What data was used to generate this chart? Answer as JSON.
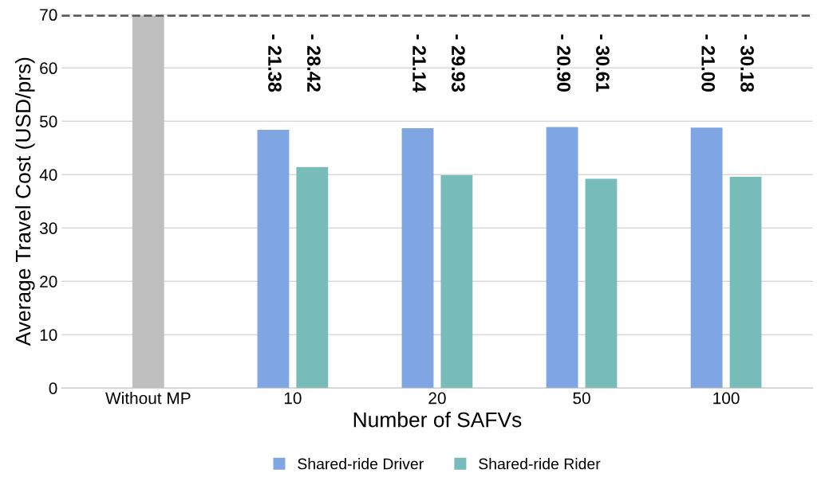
{
  "chart_data": {
    "type": "bar",
    "xlabel": "Number of SAFVs",
    "ylabel": "Average Travel Cost (USD/prs)",
    "categories": [
      "Without MP",
      "10",
      "20",
      "50",
      "100"
    ],
    "series": [
      {
        "color": "#bfbfbf",
        "values": [
          69.8,
          null,
          null,
          null,
          null
        ]
      },
      {
        "name": "Shared-ride Driver",
        "color": "#7fa6e3",
        "values": [
          null,
          48.4,
          48.7,
          48.9,
          48.8
        ]
      },
      {
        "name": "Shared-ride Rider",
        "color": "#77bcb9",
        "values": [
          null,
          41.4,
          39.9,
          39.2,
          39.6
        ]
      }
    ],
    "annotations": [
      "- 21.38",
      "- 28.42",
      "- 21.14",
      "- 29.93",
      "- 20.90",
      "- 30.61",
      "- 21.00",
      "- 30.18"
    ],
    "ylim": [
      0,
      70
    ],
    "yticks": [
      0,
      10,
      20,
      30,
      40,
      50,
      60,
      70
    ],
    "grid": "y",
    "legend": "bottom",
    "ref_lines": [
      {
        "axis": "y",
        "value": 69.8,
        "color": "#595959",
        "line_style": "dashed"
      }
    ]
  }
}
